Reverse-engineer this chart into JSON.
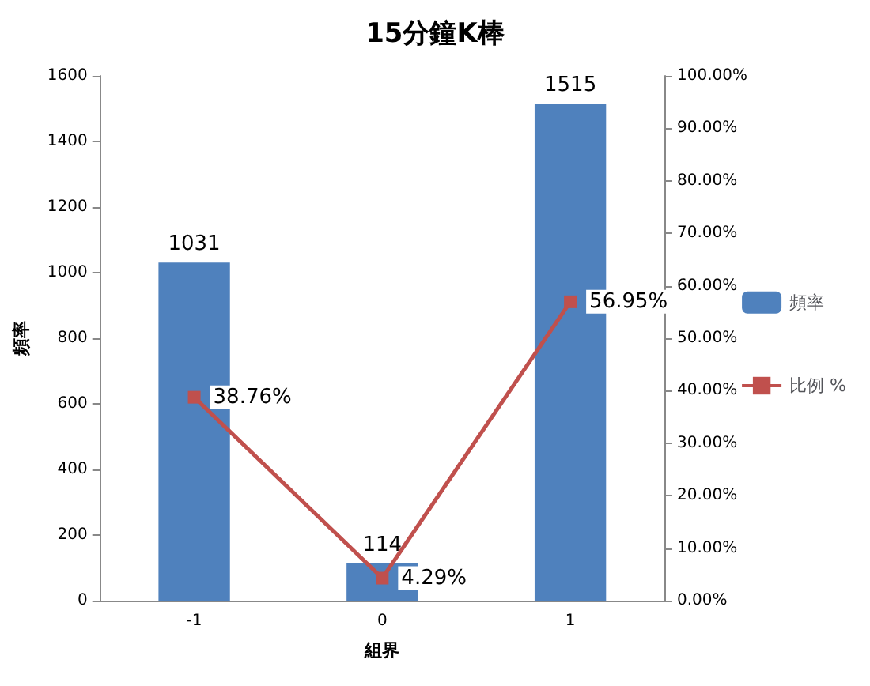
{
  "chart_data": {
    "type": "bar",
    "title": "15分鐘K棒",
    "xlabel": "組界",
    "ylabel": "頻率",
    "categories": [
      "-1",
      "0",
      "1"
    ],
    "series": [
      {
        "name": "頻率",
        "color": "#4f81bd",
        "values": [
          1031,
          114,
          1515
        ],
        "value_labels": [
          "1031",
          "114",
          "1515"
        ]
      },
      {
        "name": "比例 %",
        "type": "line",
        "axis": "y2",
        "color": "#c0504d",
        "marker": "square",
        "values": [
          38.76,
          4.29,
          56.95
        ],
        "value_labels": [
          "38.76%",
          "4.29%",
          "56.95%"
        ]
      }
    ],
    "ylim": [
      0,
      1600
    ],
    "yticks": [
      0,
      200,
      400,
      600,
      800,
      1000,
      1200,
      1400,
      1600
    ],
    "y2lim": [
      0,
      100
    ],
    "y2ticks": [
      {
        "value": 0,
        "label": "0.00%"
      },
      {
        "value": 10,
        "label": "10.00%"
      },
      {
        "value": 20,
        "label": "20.00%"
      },
      {
        "value": 30,
        "label": "30.00%"
      },
      {
        "value": 40,
        "label": "40.00%"
      },
      {
        "value": 50,
        "label": "50.00%"
      },
      {
        "value": 60,
        "label": "60.00%"
      },
      {
        "value": 70,
        "label": "70.00%"
      },
      {
        "value": 80,
        "label": "80.00%"
      },
      {
        "value": 90,
        "label": "90.00%"
      },
      {
        "value": 100,
        "label": "100.00%"
      }
    ],
    "grid": false,
    "legend": "right"
  }
}
